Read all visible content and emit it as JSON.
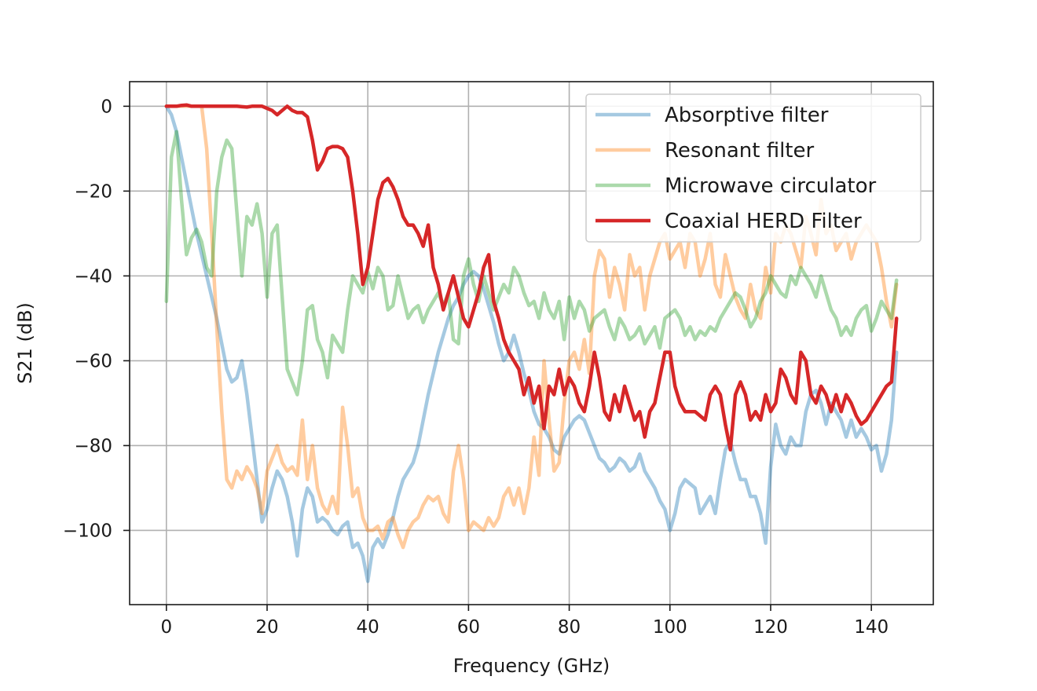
{
  "chart_data": {
    "type": "line",
    "title": "",
    "xlabel": "Frequency (GHz)",
    "ylabel": "S21 (dB)",
    "xlim": [
      -7.3,
      152.3
    ],
    "ylim": [
      -117.5,
      5.8
    ],
    "xticks": [
      0,
      20,
      40,
      60,
      80,
      100,
      120,
      140
    ],
    "xtick_labels": [
      "0",
      "20",
      "40",
      "60",
      "80",
      "100",
      "120",
      "140"
    ],
    "yticks": [
      0,
      -20,
      -40,
      -60,
      -80,
      -100
    ],
    "ytick_labels": [
      "0",
      "−20",
      "−40",
      "−60",
      "−80",
      "−100"
    ],
    "grid": true,
    "legend_position": "top-right",
    "series": [
      {
        "name": "Absorptive filter",
        "color": "#1f77b4",
        "opacity": 0.4,
        "x": [
          0,
          1,
          2,
          3,
          4,
          5,
          6,
          7,
          8,
          9,
          10,
          11,
          12,
          13,
          14,
          15,
          16,
          17,
          18,
          19,
          20,
          21,
          22,
          23,
          24,
          25,
          26,
          27,
          28,
          29,
          30,
          31,
          32,
          33,
          34,
          35,
          36,
          37,
          38,
          39,
          40,
          41,
          42,
          43,
          44,
          45,
          46,
          47,
          48,
          49,
          50,
          51,
          52,
          53,
          54,
          55,
          56,
          57,
          58,
          59,
          60,
          61,
          62,
          63,
          64,
          65,
          66,
          67,
          68,
          69,
          70,
          71,
          72,
          73,
          74,
          75,
          76,
          77,
          78,
          79,
          80,
          81,
          82,
          83,
          84,
          85,
          86,
          87,
          88,
          89,
          90,
          91,
          92,
          93,
          94,
          95,
          96,
          97,
          98,
          99,
          100,
          101,
          102,
          103,
          104,
          105,
          106,
          107,
          108,
          109,
          110,
          111,
          112,
          113,
          114,
          115,
          116,
          117,
          118,
          119,
          120,
          121,
          122,
          123,
          124,
          125,
          126,
          127,
          128,
          129,
          130,
          131,
          132,
          133,
          134,
          135,
          136,
          137,
          138,
          139,
          140,
          141,
          142,
          143,
          144,
          145
        ],
        "y": [
          0,
          -2,
          -6,
          -12,
          -18,
          -24,
          -30,
          -35,
          -40,
          -45,
          -50,
          -56,
          -62,
          -65,
          -64,
          -60,
          -68,
          -78,
          -88,
          -98,
          -95,
          -90,
          -86,
          -88,
          -92,
          -98,
          -106,
          -95,
          -90,
          -92,
          -98,
          -97,
          -98,
          -100,
          -101,
          -99,
          -98,
          -104,
          -103,
          -106,
          -112,
          -104,
          -102,
          -104,
          -101,
          -97,
          -92,
          -88,
          -86,
          -84,
          -80,
          -74,
          -68,
          -63,
          -58,
          -54,
          -50,
          -47,
          -45,
          -42,
          -40,
          -39,
          -40,
          -43,
          -47,
          -51,
          -56,
          -60,
          -58,
          -54,
          -58,
          -63,
          -67,
          -72,
          -75,
          -76,
          -78,
          -81,
          -82,
          -78,
          -76,
          -74,
          -73,
          -74,
          -77,
          -80,
          -83,
          -84,
          -86,
          -85,
          -83,
          -84,
          -86,
          -85,
          -82,
          -86,
          -88,
          -90,
          -93,
          -95,
          -100,
          -96,
          -90,
          -88,
          -89,
          -90,
          -96,
          -94,
          -92,
          -96,
          -88,
          -81,
          -79,
          -84,
          -88,
          -88,
          -92,
          -92,
          -96,
          -103,
          -85,
          -75,
          -80,
          -82,
          -78,
          -80,
          -80,
          -72,
          -68,
          -67,
          -70,
          -75,
          -70,
          -72,
          -74,
          -78,
          -74,
          -78,
          -76,
          -78,
          -81,
          -80,
          -86,
          -82,
          -74,
          -58
        ]
      },
      {
        "name": "Resonant filter",
        "color": "#ff7f0e",
        "opacity": 0.4,
        "x": [
          0,
          1,
          2,
          3,
          4,
          5,
          6,
          7,
          8,
          9,
          10,
          11,
          12,
          13,
          14,
          15,
          16,
          17,
          18,
          19,
          20,
          21,
          22,
          23,
          24,
          25,
          26,
          27,
          28,
          29,
          30,
          31,
          32,
          33,
          34,
          35,
          36,
          37,
          38,
          39,
          40,
          41,
          42,
          43,
          44,
          45,
          46,
          47,
          48,
          49,
          50,
          51,
          52,
          53,
          54,
          55,
          56,
          57,
          58,
          59,
          60,
          61,
          62,
          63,
          64,
          65,
          66,
          67,
          68,
          69,
          70,
          71,
          72,
          73,
          74,
          75,
          76,
          77,
          78,
          79,
          80,
          81,
          82,
          83,
          84,
          85,
          86,
          87,
          88,
          89,
          90,
          91,
          92,
          93,
          94,
          95,
          96,
          97,
          98,
          99,
          100,
          101,
          102,
          103,
          104,
          105,
          106,
          107,
          108,
          109,
          110,
          111,
          112,
          113,
          114,
          115,
          116,
          117,
          118,
          119,
          120,
          121,
          122,
          123,
          124,
          125,
          126,
          127,
          128,
          129,
          130,
          131,
          132,
          133,
          134,
          135,
          136,
          137,
          138,
          139,
          140,
          141,
          142,
          143,
          144,
          145
        ],
        "y": [
          0,
          0,
          0,
          0,
          0,
          0,
          0,
          0,
          -10,
          -30,
          -52,
          -72,
          -88,
          -90,
          -86,
          -88,
          -85,
          -87,
          -90,
          -96,
          -86,
          -83,
          -80,
          -84,
          -86,
          -85,
          -87,
          -74,
          -88,
          -80,
          -90,
          -94,
          -96,
          -92,
          -96,
          -71,
          -80,
          -92,
          -90,
          -97,
          -100,
          -100,
          -99,
          -102,
          -98,
          -97,
          -101,
          -104,
          -100,
          -98,
          -97,
          -94,
          -92,
          -93,
          -92,
          -96,
          -98,
          -86,
          -80,
          -88,
          -100,
          -98,
          -99,
          -100,
          -97,
          -99,
          -97,
          -92,
          -90,
          -94,
          -90,
          -96,
          -90,
          -78,
          -87,
          -60,
          -74,
          -86,
          -84,
          -70,
          -60,
          -58,
          -62,
          -55,
          -63,
          -40,
          -34,
          -36,
          -45,
          -38,
          -42,
          -48,
          -35,
          -40,
          -38,
          -48,
          -40,
          -36,
          -32,
          -30,
          -36,
          -34,
          -32,
          -38,
          -30,
          -32,
          -40,
          -36,
          -30,
          -42,
          -45,
          -35,
          -40,
          -45,
          -48,
          -50,
          -42,
          -48,
          -50,
          -38,
          -44,
          -30,
          -32,
          -28,
          -30,
          -34,
          -38,
          -26,
          -30,
          -35,
          -22,
          -30,
          -28,
          -34,
          -32,
          -30,
          -36,
          -32,
          -30,
          -28,
          -30,
          -32,
          -38,
          -46,
          -52,
          -42
        ]
      },
      {
        "name": "Microwave circulator",
        "color": "#2ca02c",
        "opacity": 0.4,
        "x": [
          0,
          1,
          2,
          3,
          4,
          5,
          6,
          7,
          8,
          9,
          10,
          11,
          12,
          13,
          14,
          15,
          16,
          17,
          18,
          19,
          20,
          21,
          22,
          23,
          24,
          25,
          26,
          27,
          28,
          29,
          30,
          31,
          32,
          33,
          34,
          35,
          36,
          37,
          38,
          39,
          40,
          41,
          42,
          43,
          44,
          45,
          46,
          47,
          48,
          49,
          50,
          51,
          52,
          53,
          54,
          55,
          56,
          57,
          58,
          59,
          60,
          61,
          62,
          63,
          64,
          65,
          66,
          67,
          68,
          69,
          70,
          71,
          72,
          73,
          74,
          75,
          76,
          77,
          78,
          79,
          80,
          81,
          82,
          83,
          84,
          85,
          86,
          87,
          88,
          89,
          90,
          91,
          92,
          93,
          94,
          95,
          96,
          97,
          98,
          99,
          100,
          101,
          102,
          103,
          104,
          105,
          106,
          107,
          108,
          109,
          110,
          111,
          112,
          113,
          114,
          115,
          116,
          117,
          118,
          119,
          120,
          121,
          122,
          123,
          124,
          125,
          126,
          127,
          128,
          129,
          130,
          131,
          132,
          133,
          134,
          135,
          136,
          137,
          138,
          139,
          140,
          141,
          142,
          143,
          144,
          145
        ],
        "y": [
          -46,
          -12,
          -6,
          -22,
          -35,
          -31,
          -29,
          -32,
          -38,
          -40,
          -20,
          -12,
          -8,
          -10,
          -25,
          -40,
          -26,
          -28,
          -23,
          -30,
          -45,
          -30,
          -28,
          -45,
          -62,
          -65,
          -68,
          -60,
          -48,
          -47,
          -55,
          -58,
          -64,
          -54,
          -56,
          -58,
          -48,
          -40,
          -42,
          -44,
          -39,
          -43,
          -38,
          -40,
          -48,
          -47,
          -40,
          -45,
          -50,
          -48,
          -47,
          -51,
          -48,
          -46,
          -44,
          -47,
          -44,
          -55,
          -56,
          -40,
          -36,
          -42,
          -46,
          -40,
          -44,
          -48,
          -45,
          -42,
          -44,
          -38,
          -40,
          -44,
          -47,
          -46,
          -50,
          -44,
          -48,
          -50,
          -46,
          -55,
          -45,
          -50,
          -46,
          -48,
          -53,
          -50,
          -49,
          -48,
          -52,
          -55,
          -50,
          -52,
          -55,
          -54,
          -52,
          -56,
          -54,
          -52,
          -57,
          -50,
          -49,
          -48,
          -50,
          -54,
          -52,
          -55,
          -53,
          -54,
          -52,
          -53,
          -50,
          -48,
          -46,
          -44,
          -45,
          -48,
          -52,
          -50,
          -46,
          -44,
          -40,
          -42,
          -44,
          -45,
          -40,
          -42,
          -38,
          -40,
          -42,
          -45,
          -40,
          -44,
          -48,
          -50,
          -54,
          -52,
          -54,
          -50,
          -48,
          -47,
          -53,
          -50,
          -46,
          -48,
          -50,
          -41
        ]
      },
      {
        "name": "Coaxial HERD Filter",
        "color": "#d62728",
        "opacity": 1,
        "x": [
          0,
          1,
          2,
          3,
          4,
          5,
          6,
          7,
          8,
          9,
          10,
          11,
          12,
          13,
          14,
          15,
          16,
          17,
          18,
          19,
          20,
          21,
          22,
          23,
          24,
          25,
          26,
          27,
          28,
          29,
          30,
          31,
          32,
          33,
          34,
          35,
          36,
          37,
          38,
          39,
          40,
          41,
          42,
          43,
          44,
          45,
          46,
          47,
          48,
          49,
          50,
          51,
          52,
          53,
          54,
          55,
          56,
          57,
          58,
          59,
          60,
          61,
          62,
          63,
          64,
          65,
          66,
          67,
          68,
          69,
          70,
          71,
          72,
          73,
          74,
          75,
          76,
          77,
          78,
          79,
          80,
          81,
          82,
          83,
          84,
          85,
          86,
          87,
          88,
          89,
          90,
          91,
          92,
          93,
          94,
          95,
          96,
          97,
          98,
          99,
          100,
          101,
          102,
          103,
          104,
          105,
          106,
          107,
          108,
          109,
          110,
          111,
          112,
          113,
          114,
          115,
          116,
          117,
          118,
          119,
          120,
          121,
          122,
          123,
          124,
          125,
          126,
          127,
          128,
          129,
          130,
          131,
          132,
          133,
          134,
          135,
          136,
          137,
          138,
          139,
          140,
          141,
          142,
          143,
          144,
          145
        ],
        "y": [
          0,
          0,
          0,
          0.2,
          0.3,
          0,
          0,
          0,
          0,
          0,
          0,
          0,
          0,
          0,
          0,
          -0.1,
          -0.2,
          0,
          0,
          0,
          -0.5,
          -1,
          -2,
          -1,
          0,
          -1,
          -1.5,
          -1.5,
          -2.5,
          -8,
          -15,
          -13,
          -10,
          -9.5,
          -9.5,
          -10,
          -12,
          -20,
          -30,
          -42,
          -38,
          -30,
          -22,
          -18,
          -17,
          -19,
          -22,
          -26,
          -28,
          -28,
          -30,
          -33,
          -28,
          -38,
          -42,
          -48,
          -44,
          -40,
          -45,
          -50,
          -52,
          -48,
          -44,
          -38,
          -35,
          -46,
          -50,
          -55,
          -58,
          -60,
          -62,
          -68,
          -64,
          -70,
          -66,
          -76,
          -66,
          -68,
          -62,
          -68,
          -64,
          -66,
          -70,
          -72,
          -66,
          -58,
          -64,
          -72,
          -74,
          -68,
          -72,
          -66,
          -70,
          -74,
          -72,
          -78,
          -72,
          -70,
          -64,
          -58,
          -58,
          -66,
          -70,
          -72,
          -72,
          -72,
          -73,
          -74,
          -68,
          -66,
          -68,
          -75,
          -81,
          -68,
          -65,
          -68,
          -74,
          -72,
          -74,
          -68,
          -72,
          -70,
          -62,
          -64,
          -68,
          -70,
          -58,
          -60,
          -68,
          -70,
          -66,
          -68,
          -72,
          -68,
          -72,
          -68,
          -70,
          -73,
          -75,
          -74,
          -72,
          -70,
          -68,
          -66,
          -65,
          -50
        ]
      }
    ]
  }
}
